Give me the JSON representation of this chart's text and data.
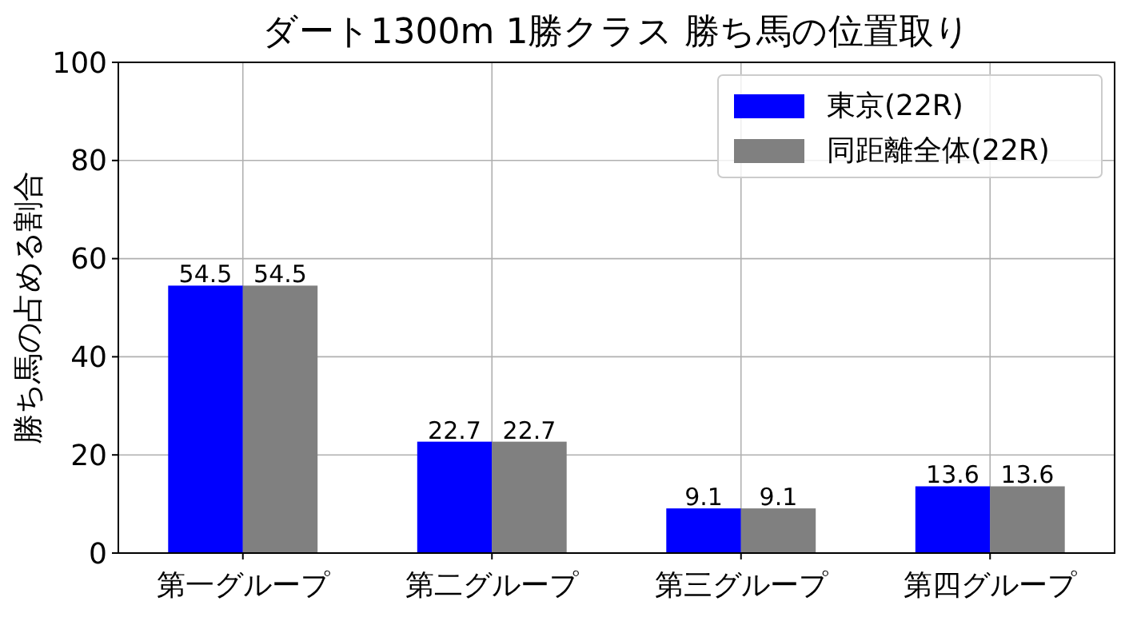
{
  "chart_data": {
    "type": "bar",
    "title": "ダート1300m 1勝クラス 勝ち馬の位置取り",
    "ylabel": "勝ち馬の占める割合",
    "categories": [
      "第一グループ",
      "第二グループ",
      "第三グループ",
      "第四グループ"
    ],
    "series": [
      {
        "name": "東京(22R)",
        "color": "#0000ff",
        "values": [
          54.5,
          22.7,
          9.1,
          13.6
        ]
      },
      {
        "name": "同距離全体(22R)",
        "color": "#808080",
        "values": [
          54.5,
          22.7,
          9.1,
          13.6
        ]
      }
    ],
    "ylim": [
      0,
      100
    ],
    "yticks": [
      0,
      20,
      40,
      60,
      80,
      100
    ],
    "grid": true,
    "legend": "top right",
    "data_labels": true
  }
}
